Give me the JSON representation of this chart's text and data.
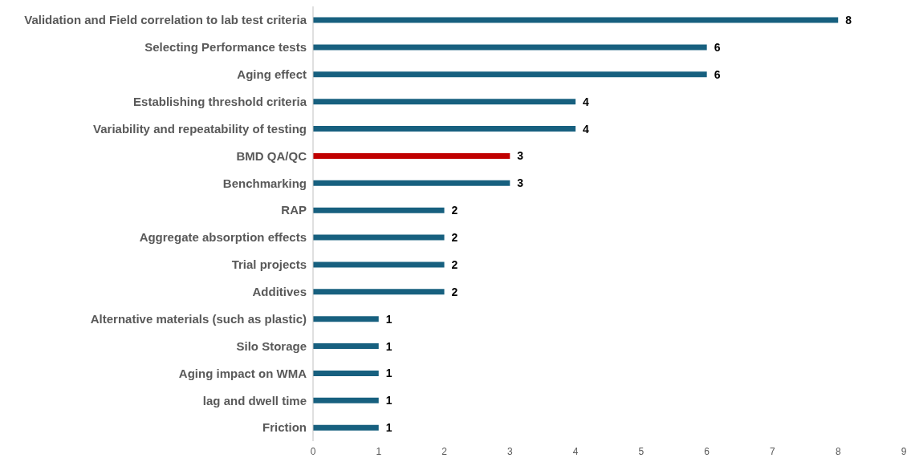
{
  "chart_data": {
    "type": "bar",
    "orientation": "horizontal",
    "categories": [
      "Validation and Field correlation to lab test criteria",
      "Selecting Performance tests",
      "Aging effect",
      "Establishing threshold criteria",
      "Variability and repeatability of testing",
      "BMD QA/QC",
      "Benchmarking",
      "RAP",
      "Aggregate absorption effects",
      "Trial projects",
      "Additives",
      "Alternative materials (such as plastic)",
      "Silo Storage",
      "Aging impact on WMA",
      "lag and dwell time",
      "Friction"
    ],
    "values": [
      8,
      6,
      6,
      4,
      4,
      3,
      3,
      2,
      2,
      2,
      2,
      1,
      1,
      1,
      1,
      1
    ],
    "colors": [
      "#17607f",
      "#17607f",
      "#17607f",
      "#17607f",
      "#17607f",
      "#c00000",
      "#17607f",
      "#17607f",
      "#17607f",
      "#17607f",
      "#17607f",
      "#17607f",
      "#17607f",
      "#17607f",
      "#17607f",
      "#17607f"
    ],
    "xlim": [
      0,
      9
    ],
    "xticks": [
      0,
      1,
      2,
      3,
      4,
      5,
      6,
      7,
      8,
      9
    ],
    "data_labels": true
  }
}
